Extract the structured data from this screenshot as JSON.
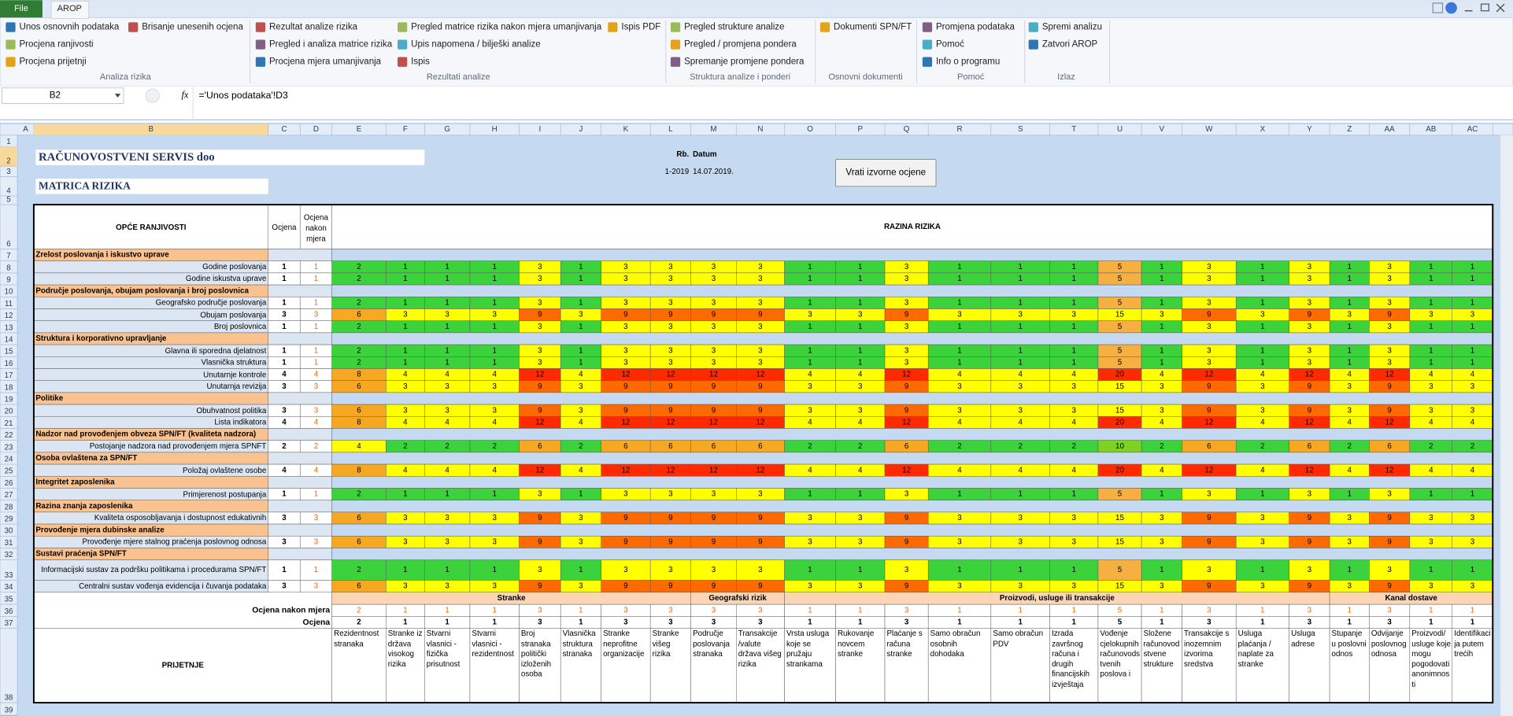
{
  "ribbon": {
    "tabs": [
      "File",
      "AROP"
    ],
    "groups": [
      {
        "label": "Analiza rizika",
        "items": [
          "Unos osnovnih podataka",
          "Brisanje unesenih ocjena",
          "Procjena ranjivosti",
          "Procjena prijetnji"
        ]
      },
      {
        "label": "Rezultati analize",
        "items": [
          "Rezultat analize rizika",
          "Pregled matrice rizika nakon mjera umanjivanja",
          "Ispis PDF",
          "Pregled i analiza matrice rizika",
          "Upis napomena / bilješki analize",
          "Procjena mjera umanjivanja",
          "Ispis"
        ]
      },
      {
        "label": "Struktura analize i ponderi",
        "items": [
          "Pregled strukture analize",
          "Pregled / promjena pondera",
          "Spremanje promjene pondera"
        ]
      },
      {
        "label": "Osnovni dokumenti",
        "items": [
          "Dokumenti SPN/FT"
        ]
      },
      {
        "label": "Pomoć",
        "items": [
          "Promjena podataka",
          "Pomoć",
          "Info o programu"
        ]
      },
      {
        "label": "Izlaz",
        "items": [
          "Spremi analizu",
          "Zatvori AROP"
        ]
      }
    ]
  },
  "formula_bar": {
    "name_box": "B2",
    "fx": "fx",
    "formula": "='Unos podataka'!D3"
  },
  "sheet": {
    "columns": [
      "A",
      "B",
      "C",
      "D",
      "E",
      "F",
      "G",
      "H",
      "I",
      "J",
      "K",
      "L",
      "M",
      "N",
      "O",
      "P",
      "Q",
      "R",
      "S",
      "T",
      "U",
      "V",
      "W",
      "X",
      "Y",
      "Z",
      "AA",
      "AB",
      "AC"
    ],
    "row_numbers": [
      1,
      2,
      3,
      4,
      5,
      6,
      7,
      8,
      9,
      10,
      11,
      12,
      13,
      14,
      15,
      16,
      17,
      18,
      19,
      20,
      21,
      22,
      23,
      24,
      25,
      26,
      27,
      28,
      29,
      30,
      31,
      32,
      33,
      34,
      35,
      36,
      37,
      38,
      39
    ],
    "company": "RAČUNOVOSTVENI SERVIS doo",
    "title": "MATRICA RIZIKA",
    "rb_label": "Rb.",
    "datum_label": "Datum",
    "rb": "1-2019",
    "datum": "14.07.2019.",
    "button": "Vrati izvorne ocjene"
  },
  "matrix": {
    "header_label": "OPĆE RANJIVOSTI",
    "rating_header": "Ocjena",
    "after_header": "Ocjena nakon mjera",
    "risk_header": "RAZINA RIZIKA",
    "after_color": "#e46c0a",
    "value_colors": {
      "1": "#3cd23c",
      "2": "#3cd23c",
      "3": "#ffff00",
      "4": "#ffff00",
      "5": "#f6b042",
      "6": "#f7a823",
      "8": "#f7a823",
      "9": "#ff6a00",
      "10": "#7ed321",
      "12": "#ff2a00",
      "15": "#ffff00",
      "20": "#ff2a00"
    },
    "sections": [
      {
        "title": "Zrelost poslovanja i iskustvo uprave",
        "items": [
          {
            "label": "Godine poslovanja",
            "rating": 1,
            "after": 1,
            "values": [
              2,
              1,
              1,
              1,
              3,
              1,
              3,
              3,
              3,
              3,
              1,
              1,
              3,
              1,
              1,
              1,
              5,
              1,
              3,
              1,
              3,
              1,
              3,
              1,
              1
            ]
          },
          {
            "label": "Godine iskustva uprave",
            "rating": 1,
            "after": 1,
            "values": [
              2,
              1,
              1,
              1,
              3,
              1,
              3,
              3,
              3,
              3,
              1,
              1,
              3,
              1,
              1,
              1,
              5,
              1,
              3,
              1,
              3,
              1,
              3,
              1,
              1
            ]
          }
        ]
      },
      {
        "title": "Područje poslovanja, obujam poslovanja i broj poslovnica",
        "items": [
          {
            "label": "Geografsko područje poslovanja",
            "rating": 1,
            "after": 1,
            "values": [
              2,
              1,
              1,
              1,
              3,
              1,
              3,
              3,
              3,
              3,
              1,
              1,
              3,
              1,
              1,
              1,
              5,
              1,
              3,
              1,
              3,
              1,
              3,
              1,
              1
            ]
          },
          {
            "label": "Obujam poslovanja",
            "rating": 3,
            "after": 3,
            "values": [
              6,
              3,
              3,
              3,
              9,
              3,
              9,
              9,
              9,
              9,
              3,
              3,
              9,
              3,
              3,
              3,
              15,
              3,
              9,
              3,
              9,
              3,
              9,
              3,
              3
            ]
          },
          {
            "label": "Broj poslovnica",
            "rating": 1,
            "after": 1,
            "values": [
              2,
              1,
              1,
              1,
              3,
              1,
              3,
              3,
              3,
              3,
              1,
              1,
              3,
              1,
              1,
              1,
              5,
              1,
              3,
              1,
              3,
              1,
              3,
              1,
              1
            ]
          }
        ]
      },
      {
        "title": "Struktura i korporativno upravljanje",
        "items": [
          {
            "label": "Glavna ili sporedna djelatnost",
            "rating": 1,
            "after": 1,
            "values": [
              2,
              1,
              1,
              1,
              3,
              1,
              3,
              3,
              3,
              3,
              1,
              1,
              3,
              1,
              1,
              1,
              5,
              1,
              3,
              1,
              3,
              1,
              3,
              1,
              1
            ]
          },
          {
            "label": "Vlasnička struktura",
            "rating": 1,
            "after": 1,
            "values": [
              2,
              1,
              1,
              1,
              3,
              1,
              3,
              3,
              3,
              3,
              1,
              1,
              3,
              1,
              1,
              1,
              5,
              1,
              3,
              1,
              3,
              1,
              3,
              1,
              1
            ]
          },
          {
            "label": "Unutarnje kontrole",
            "rating": 4,
            "after": 4,
            "values": [
              8,
              4,
              4,
              4,
              12,
              4,
              12,
              12,
              12,
              12,
              4,
              4,
              12,
              4,
              4,
              4,
              20,
              4,
              12,
              4,
              12,
              4,
              12,
              4,
              4
            ]
          },
          {
            "label": "Unutarnja revizija",
            "rating": 3,
            "after": 3,
            "values": [
              6,
              3,
              3,
              3,
              9,
              3,
              9,
              9,
              9,
              9,
              3,
              3,
              9,
              3,
              3,
              3,
              15,
              3,
              9,
              3,
              9,
              3,
              9,
              3,
              3
            ]
          }
        ]
      },
      {
        "title": "Politike",
        "items": [
          {
            "label": "Obuhvatnost politika",
            "rating": 3,
            "after": 3,
            "values": [
              6,
              3,
              3,
              3,
              9,
              3,
              9,
              9,
              9,
              9,
              3,
              3,
              9,
              3,
              3,
              3,
              15,
              3,
              9,
              3,
              9,
              3,
              9,
              3,
              3
            ]
          },
          {
            "label": "Lista indikatora",
            "rating": 4,
            "after": 4,
            "values": [
              8,
              4,
              4,
              4,
              12,
              4,
              12,
              12,
              12,
              12,
              4,
              4,
              12,
              4,
              4,
              4,
              20,
              4,
              12,
              4,
              12,
              4,
              12,
              4,
              4
            ]
          }
        ]
      },
      {
        "title": "Nadzor nad provođenjem obveza SPN/FT (kvaliteta nadzora)",
        "items": [
          {
            "label": "Postojanje nadzora nad provođenjem mjera SPNFT",
            "rating": 2,
            "after": 2,
            "values": [
              4,
              2,
              2,
              2,
              6,
              2,
              6,
              6,
              6,
              6,
              2,
              2,
              6,
              2,
              2,
              2,
              10,
              2,
              6,
              2,
              6,
              2,
              6,
              2,
              2
            ]
          }
        ]
      },
      {
        "title": "Osoba ovlaštena za SPN/FT",
        "items": [
          {
            "label": "Položaj ovlaštene osobe",
            "rating": 4,
            "after": 4,
            "values": [
              8,
              4,
              4,
              4,
              12,
              4,
              12,
              12,
              12,
              12,
              4,
              4,
              12,
              4,
              4,
              4,
              20,
              4,
              12,
              4,
              12,
              4,
              12,
              4,
              4
            ]
          }
        ]
      },
      {
        "title": "Integritet zaposlenika",
        "items": [
          {
            "label": "Primjerenost postupanja",
            "rating": 1,
            "after": 1,
            "values": [
              2,
              1,
              1,
              1,
              3,
              1,
              3,
              3,
              3,
              3,
              1,
              1,
              3,
              1,
              1,
              1,
              5,
              1,
              3,
              1,
              3,
              1,
              3,
              1,
              1
            ]
          }
        ]
      },
      {
        "title": "Razina znanja zaposlenika",
        "items": [
          {
            "label": "Kvaliteta osposobljavanja i dostupnost edukativnih",
            "rating": 3,
            "after": 3,
            "values": [
              6,
              3,
              3,
              3,
              9,
              3,
              9,
              9,
              9,
              9,
              3,
              3,
              9,
              3,
              3,
              3,
              15,
              3,
              9,
              3,
              9,
              3,
              9,
              3,
              3
            ]
          }
        ]
      },
      {
        "title": "Provođenje mjera dubinske analize",
        "items": [
          {
            "label": "Provođenje mjere stalnog praćenja poslovnog odnosa",
            "rating": 3,
            "after": 3,
            "values": [
              6,
              3,
              3,
              3,
              9,
              3,
              9,
              9,
              9,
              9,
              3,
              3,
              9,
              3,
              3,
              3,
              15,
              3,
              9,
              3,
              9,
              3,
              9,
              3,
              3
            ]
          }
        ]
      },
      {
        "title": "Sustavi praćenja SPN/FT",
        "items": [
          {
            "label": "Informacijski sustav za podršku politikama i procedurama SPN/FT",
            "rating": 1,
            "after": 1,
            "values": [
              2,
              1,
              1,
              1,
              3,
              1,
              3,
              3,
              3,
              3,
              1,
              1,
              3,
              1,
              1,
              1,
              5,
              1,
              3,
              1,
              3,
              1,
              3,
              1,
              1
            ]
          },
          {
            "label": "Centralni sustav vođenja evidencija i čuvanja podataka",
            "rating": 3,
            "after": 3,
            "values": [
              6,
              3,
              3,
              3,
              9,
              3,
              9,
              9,
              9,
              9,
              3,
              3,
              9,
              3,
              3,
              3,
              15,
              3,
              9,
              3,
              9,
              3,
              9,
              3,
              3
            ]
          }
        ]
      }
    ],
    "threats": {
      "label": "PRIJETNJE",
      "after_label": "Ocjena nakon mjera",
      "rating_label": "Ocjena",
      "groups": [
        {
          "name": "Stranke",
          "threats": [
            {
              "name": "Rezidentnost stranaka",
              "after": 2,
              "rating": 2
            },
            {
              "name": "Stranke iz država visokog rizika",
              "after": 1,
              "rating": 1
            },
            {
              "name": "Stvarni vlasnici - fizička prisutnost",
              "after": 1,
              "rating": 1
            },
            {
              "name": "Stvarni vlasnici - rezidentnost",
              "after": 1,
              "rating": 1
            },
            {
              "name": "Broj stranaka politički izloženih osoba",
              "after": 3,
              "rating": 3
            },
            {
              "name": "Vlasnička struktura stranaka",
              "after": 1,
              "rating": 1
            },
            {
              "name": "Stranke neprofitne organizacije",
              "after": 3,
              "rating": 3
            },
            {
              "name": "Stranke višeg rizika",
              "after": 3,
              "rating": 3
            }
          ]
        },
        {
          "name": "Geografski rizik",
          "threats": [
            {
              "name": "Područje poslovanja stranaka",
              "after": 3,
              "rating": 3
            },
            {
              "name": "Transakcije /valute država višeg rizika",
              "after": 3,
              "rating": 3
            }
          ]
        },
        {
          "name": "Proizvodi, usluge ili transakcije",
          "threats": [
            {
              "name": "Vrsta usluga koje se pružaju strankama",
              "after": 1,
              "rating": 1
            },
            {
              "name": "Rukovanje novcem stranke",
              "after": 1,
              "rating": 1
            },
            {
              "name": "Plaćanje s računa stranke",
              "after": 3,
              "rating": 3
            },
            {
              "name": "Samo obračun osobnih dohodaka",
              "after": 1,
              "rating": 1
            },
            {
              "name": "Samo obračun PDV",
              "after": 1,
              "rating": 1
            },
            {
              "name": "Izrada završnog računa i drugih financijskih izvještaja",
              "after": 1,
              "rating": 1
            },
            {
              "name": "Vođenje cjelokupnih računovodstvenih poslova i",
              "after": 5,
              "rating": 5
            },
            {
              "name": "Složene računovodstvene strukture",
              "after": 1,
              "rating": 1
            },
            {
              "name": "Transakcije s inozemnim izvorima sredstva",
              "after": 3,
              "rating": 3
            },
            {
              "name": "Usluga plaćanja / naplate za stranke",
              "after": 1,
              "rating": 1
            },
            {
              "name": "Usluga adrese",
              "after": 3,
              "rating": 3
            }
          ]
        },
        {
          "name": "Kanal dostave",
          "threats": [
            {
              "name": "Stupanje u poslovni odnos",
              "after": 1,
              "rating": 1
            },
            {
              "name": "Odvijanje poslovnog odnosa",
              "after": 3,
              "rating": 3
            },
            {
              "name": "Proizvodi/ usluge koje mogu pogodovati anonimnosti",
              "after": 1,
              "rating": 1
            },
            {
              "name": "Identifikacija putem trećih",
              "after": 1,
              "rating": 1
            }
          ]
        }
      ]
    }
  }
}
